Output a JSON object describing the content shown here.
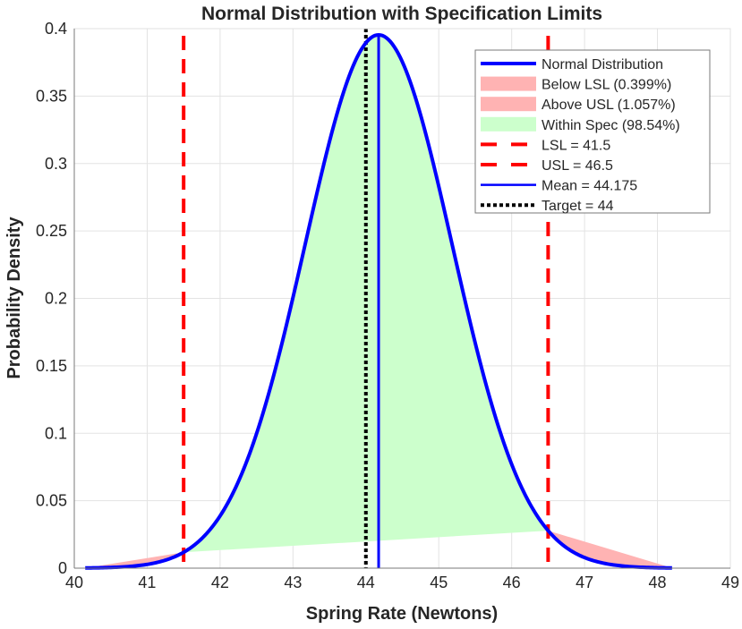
{
  "chart_data": {
    "type": "area",
    "title": "Normal Distribution with Specification Limits",
    "xlabel": "Spring Rate (Newtons)",
    "ylabel": "Probability Density",
    "xlim": [
      40,
      49
    ],
    "ylim": [
      0,
      0.4
    ],
    "xticks": [
      "40",
      "41",
      "42",
      "43",
      "44",
      "45",
      "46",
      "47",
      "48",
      "49"
    ],
    "yticks": [
      "0",
      "0.05",
      "0.1",
      "0.15",
      "0.2",
      "0.25",
      "0.3",
      "0.35",
      "0.4"
    ],
    "grid": true,
    "legend_position": "top-right",
    "distribution": {
      "mean": 44.175,
      "std": 1.009,
      "x_range": [
        40.15,
        48.2
      ]
    },
    "lsl": 41.5,
    "usl": 46.5,
    "target": 44,
    "legend": [
      {
        "label": "Normal Distribution",
        "style": "line",
        "color": "#0000ff"
      },
      {
        "label": "Below LSL (0.399%)",
        "style": "patch",
        "color": "#ffb3b3"
      },
      {
        "label": "Above USL (1.057%)",
        "style": "patch",
        "color": "#ffb3b3"
      },
      {
        "label": "Within Spec (98.54%)",
        "style": "patch",
        "color": "#ccffcc"
      },
      {
        "label": "LSL = 41.5",
        "style": "dashed",
        "color": "#ff0000"
      },
      {
        "label": "USL = 46.5",
        "style": "dashed",
        "color": "#ff0000"
      },
      {
        "label": "Mean = 44.175",
        "style": "thin",
        "color": "#0000ff"
      },
      {
        "label": "Target = 44",
        "style": "dotted",
        "color": "#000000"
      }
    ]
  }
}
